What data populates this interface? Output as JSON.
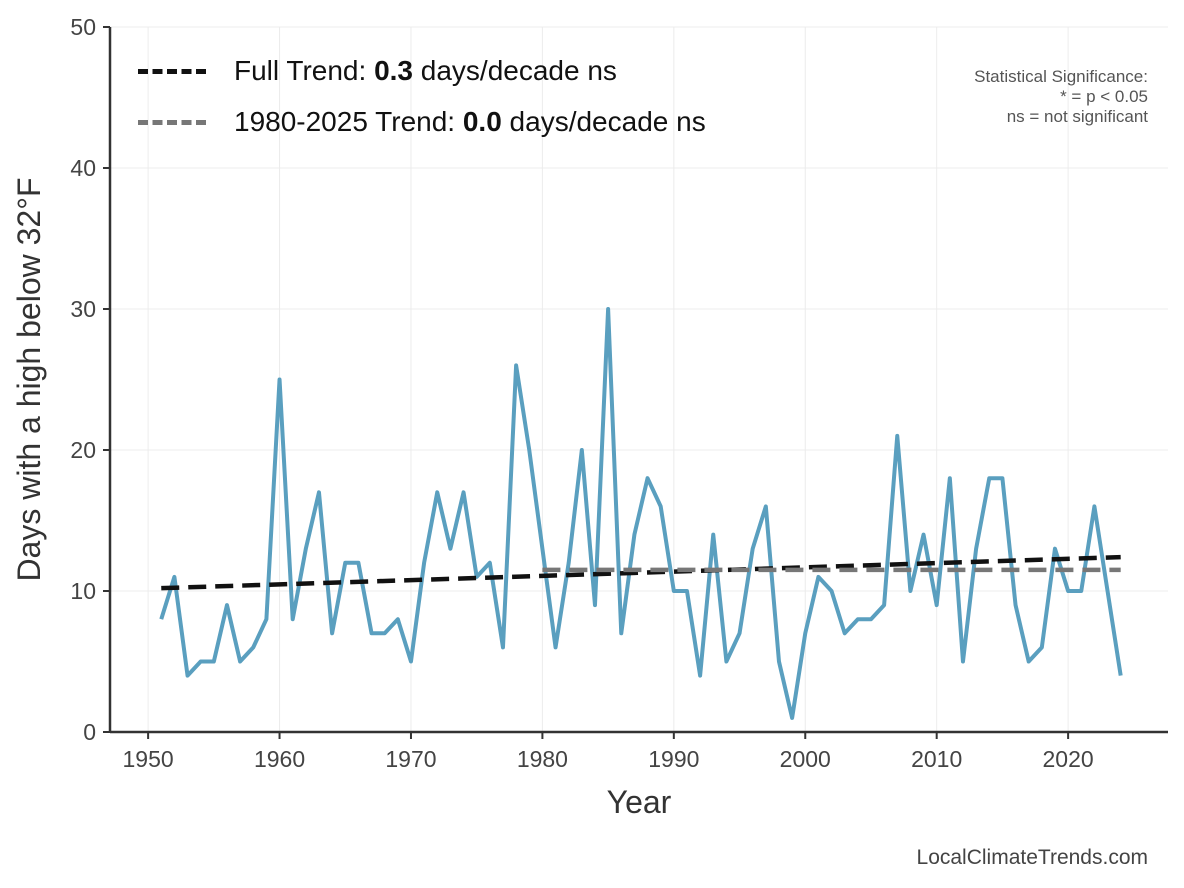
{
  "chart_data": {
    "type": "line",
    "xlabel": "Year",
    "ylabel": "Days with a high below 32°F",
    "xlim": [
      1947.1,
      2027.6
    ],
    "ylim": [
      0,
      50
    ],
    "xticks": [
      1950,
      1960,
      1970,
      1980,
      1990,
      2000,
      2010,
      2020
    ],
    "yticks": [
      0,
      10,
      20,
      30,
      40,
      50
    ],
    "grid": true,
    "x": [
      1951,
      1952,
      1953,
      1954,
      1955,
      1956,
      1957,
      1958,
      1959,
      1960,
      1961,
      1962,
      1963,
      1964,
      1965,
      1966,
      1967,
      1968,
      1969,
      1970,
      1971,
      1972,
      1973,
      1974,
      1975,
      1976,
      1977,
      1978,
      1979,
      1980,
      1981,
      1982,
      1983,
      1984,
      1985,
      1986,
      1987,
      1988,
      1989,
      1990,
      1991,
      1992,
      1993,
      1994,
      1995,
      1996,
      1997,
      1998,
      1999,
      2000,
      2001,
      2002,
      2003,
      2004,
      2005,
      2006,
      2007,
      2008,
      2009,
      2010,
      2011,
      2012,
      2013,
      2014,
      2015,
      2016,
      2017,
      2018,
      2019,
      2020,
      2021,
      2022,
      2023,
      2024
    ],
    "series": [
      {
        "name": "Days below 32°F",
        "color": "#5a9fbf",
        "values": [
          8,
          11,
          4,
          5,
          5,
          9,
          5,
          6,
          8,
          25,
          8,
          13,
          17,
          7,
          12,
          12,
          7,
          7,
          8,
          5,
          12,
          17,
          13,
          17,
          11,
          12,
          6,
          26,
          20,
          13,
          6,
          12,
          20,
          9,
          30,
          7,
          14,
          18,
          16,
          10,
          10,
          4,
          14,
          5,
          7,
          13,
          16,
          5,
          1,
          7,
          11,
          10,
          7,
          8,
          8,
          9,
          21,
          10,
          14,
          9,
          18,
          5,
          13,
          18,
          18,
          9,
          5,
          6,
          13,
          10,
          10,
          16,
          10,
          4
        ]
      }
    ],
    "trends": [
      {
        "name": "Full Trend",
        "x": [
          1951,
          2024
        ],
        "y": [
          10.2,
          12.4
        ],
        "color": "#111111"
      },
      {
        "name": "1980-2025 Trend",
        "x": [
          1980,
          2024
        ],
        "y": [
          11.5,
          11.5
        ],
        "color": "#777777"
      }
    ],
    "legend": {
      "position": "top-left",
      "full": {
        "prefix": "Full Trend: ",
        "value": "0.3",
        "suffix": " days/decade ns"
      },
      "recent": {
        "prefix": "1980-2025 Trend: ",
        "value": "0.0",
        "suffix": " days/decade ns"
      }
    },
    "significance": [
      "Statistical Significance:",
      "* = p < 0.05",
      "ns = not significant"
    ],
    "credit": "LocalClimateTrends.com"
  }
}
